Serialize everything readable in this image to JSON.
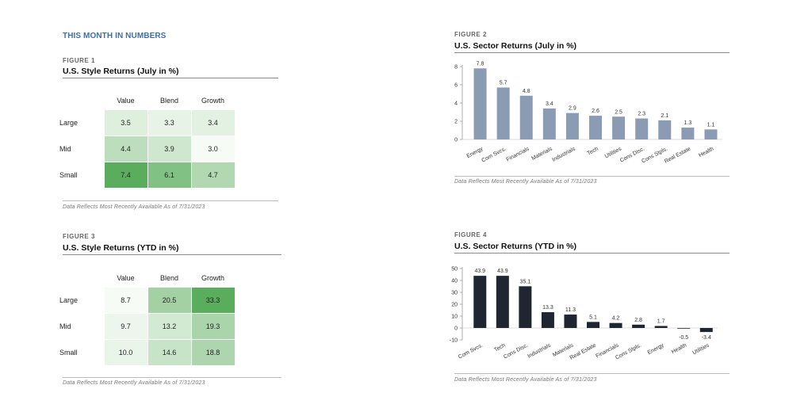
{
  "section_title": "THIS MONTH IN NUMBERS",
  "footnote": "Data Reflects Most Recently Available As of 7/31/2023",
  "colors": {
    "heat_max": "#5aad5c",
    "heat_min": "#ffffff",
    "bar_july": "#8c9bb4",
    "bar_ytd": "#1f2631",
    "accent": "#3f6fa6"
  },
  "figures": {
    "fig1": {
      "label": "FIGURE 1",
      "title": "U.S. Style Returns (July in %)",
      "columns": [
        "Value",
        "Blend",
        "Growth"
      ],
      "rows": [
        {
          "label": "Large",
          "values": [
            "3.5",
            "3.3",
            "3.4"
          ]
        },
        {
          "label": "Mid",
          "values": [
            "4.4",
            "3.9",
            "3.0"
          ]
        },
        {
          "label": "Small",
          "values": [
            "7.4",
            "6.1",
            "4.7"
          ]
        }
      ]
    },
    "fig2": {
      "label": "FIGURE 2",
      "title": "U.S. Sector Returns (July in %)"
    },
    "fig3": {
      "label": "FIGURE 3",
      "title": "U.S. Style Returns (YTD in %)",
      "columns": [
        "Value",
        "Blend",
        "Growth"
      ],
      "rows": [
        {
          "label": "Large",
          "values": [
            "8.7",
            "20.5",
            "33.3"
          ]
        },
        {
          "label": "Mid",
          "values": [
            "9.7",
            "13.2",
            "19.3"
          ]
        },
        {
          "label": "Small",
          "values": [
            "10.0",
            "14.6",
            "18.8"
          ]
        }
      ]
    },
    "fig4": {
      "label": "FIGURE 4",
      "title": "U.S. Sector Returns (YTD in %)"
    }
  },
  "chart_data": [
    {
      "type": "table",
      "title": "U.S. Style Returns (July in %)",
      "columns": [
        "Value",
        "Blend",
        "Growth"
      ],
      "rows": [
        "Large",
        "Mid",
        "Small"
      ],
      "values": [
        [
          3.5,
          3.3,
          3.4
        ],
        [
          4.4,
          3.9,
          3.0
        ],
        [
          7.4,
          6.1,
          4.7
        ]
      ]
    },
    {
      "type": "bar",
      "title": "U.S. Sector Returns (July in %)",
      "categories": [
        "Energy",
        "Com Svcs.",
        "Financials",
        "Materials",
        "Industrials",
        "Tech",
        "Utilities",
        "Cons Disc.",
        "Cons Stpls.",
        "Real Estate",
        "Health"
      ],
      "values": [
        7.8,
        5.7,
        4.8,
        3.4,
        2.9,
        2.6,
        2.5,
        2.3,
        2.1,
        1.3,
        1.1
      ],
      "value_labels": [
        "7.8",
        "5.7",
        "4.8",
        "3.4",
        "2.9",
        "2.6",
        "2.5",
        "2.3",
        "2.1",
        "1.3",
        "1.1"
      ],
      "ylim": [
        0,
        8
      ],
      "yticks": [
        0,
        2,
        4,
        6,
        8
      ],
      "xlabel": "",
      "ylabel": ""
    },
    {
      "type": "table",
      "title": "U.S. Style Returns (YTD in %)",
      "columns": [
        "Value",
        "Blend",
        "Growth"
      ],
      "rows": [
        "Large",
        "Mid",
        "Small"
      ],
      "values": [
        [
          8.7,
          20.5,
          33.3
        ],
        [
          9.7,
          13.2,
          19.3
        ],
        [
          10.0,
          14.6,
          18.8
        ]
      ]
    },
    {
      "type": "bar",
      "title": "U.S. Sector Returns (YTD in %)",
      "categories": [
        "Com Svcs.",
        "Tech",
        "Cons Disc.",
        "Industrials",
        "Materials",
        "Real Estate",
        "Financials",
        "Cons Stpls.",
        "Energy",
        "Health",
        "Utilities"
      ],
      "values": [
        43.9,
        43.9,
        35.1,
        13.3,
        11.3,
        5.1,
        4.2,
        2.8,
        1.7,
        -0.5,
        -3.4
      ],
      "value_labels": [
        "43.9",
        "43.9",
        "35.1",
        "13.3",
        "11.3",
        "5.1",
        "4.2",
        "2.8",
        "1.7",
        "-0.5",
        "-3.4"
      ],
      "ylim": [
        -10,
        50
      ],
      "yticks": [
        -10,
        0,
        10,
        20,
        30,
        40,
        50
      ],
      "xlabel": "",
      "ylabel": ""
    }
  ]
}
